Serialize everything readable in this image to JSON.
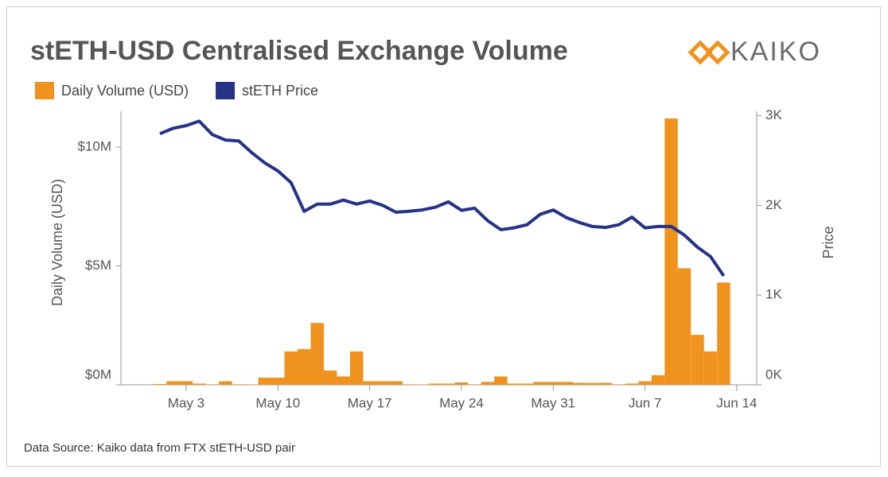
{
  "chart_data": {
    "type": "combo",
    "title": "stETH-USD Centralised Exchange Volume",
    "logo": "KAIKO",
    "source": "Data Source: Kaiko data from FTX stETH-USD pair",
    "y_label": "Daily Volume (USD)",
    "y2_label": "Price",
    "categories": [
      null,
      null,
      "May 3",
      null,
      null,
      null,
      null,
      null,
      null,
      "May 10",
      null,
      null,
      null,
      null,
      null,
      null,
      "May 17",
      null,
      null,
      null,
      null,
      null,
      null,
      "May 24",
      null,
      null,
      null,
      null,
      null,
      null,
      "May 31",
      null,
      null,
      null,
      null,
      null,
      null,
      "Jun 7",
      null,
      null,
      null,
      null,
      null,
      null,
      "Jun 14"
    ],
    "series": [
      {
        "name": "Daily Volume (USD)",
        "type": "bar",
        "color": "#f0921e",
        "values": [
          30000,
          150000,
          150000,
          50000,
          20000,
          150000,
          20000,
          10000,
          300000,
          300000,
          1400000,
          1500000,
          2600000,
          600000,
          350000,
          1400000,
          150000,
          150000,
          150000,
          20000,
          10000,
          50000,
          50000,
          100000,
          20000,
          120000,
          350000,
          50000,
          50000,
          120000,
          120000,
          120000,
          80000,
          80000,
          80000,
          20000,
          50000,
          150000,
          400000,
          11200000,
          4900000,
          2100000,
          1400000,
          4300000,
          null
        ]
      },
      {
        "name": "stETH Price",
        "type": "line",
        "axis": "y2",
        "color": "#253287",
        "values": [
          2800,
          2860,
          2890,
          2940,
          2790,
          2730,
          2720,
          2590,
          2475,
          2385,
          2255,
          1935,
          2015,
          2015,
          2060,
          2015,
          2050,
          2000,
          1925,
          1935,
          1950,
          1980,
          2040,
          1945,
          1970,
          1830,
          1730,
          1750,
          1785,
          1900,
          1950,
          1865,
          1810,
          1765,
          1755,
          1785,
          1870,
          1750,
          1765,
          1765,
          1670,
          1535,
          1430,
          1215,
          null
        ]
      }
    ],
    "ylim": [
      0,
      11500000
    ],
    "yticks": [
      {
        "value": 0,
        "label": "$0M"
      },
      {
        "value": 5000000,
        "label": "$5M"
      },
      {
        "value": 10000000,
        "label": "$10M"
      }
    ],
    "y2lim": [
      0,
      3050
    ],
    "y2ticks": [
      {
        "value": 0,
        "label": "0K"
      },
      {
        "value": 1000,
        "label": "1K"
      },
      {
        "value": 2000,
        "label": "2K"
      },
      {
        "value": 3000,
        "label": "3K"
      }
    ],
    "legend": "top-left",
    "grid": false
  }
}
